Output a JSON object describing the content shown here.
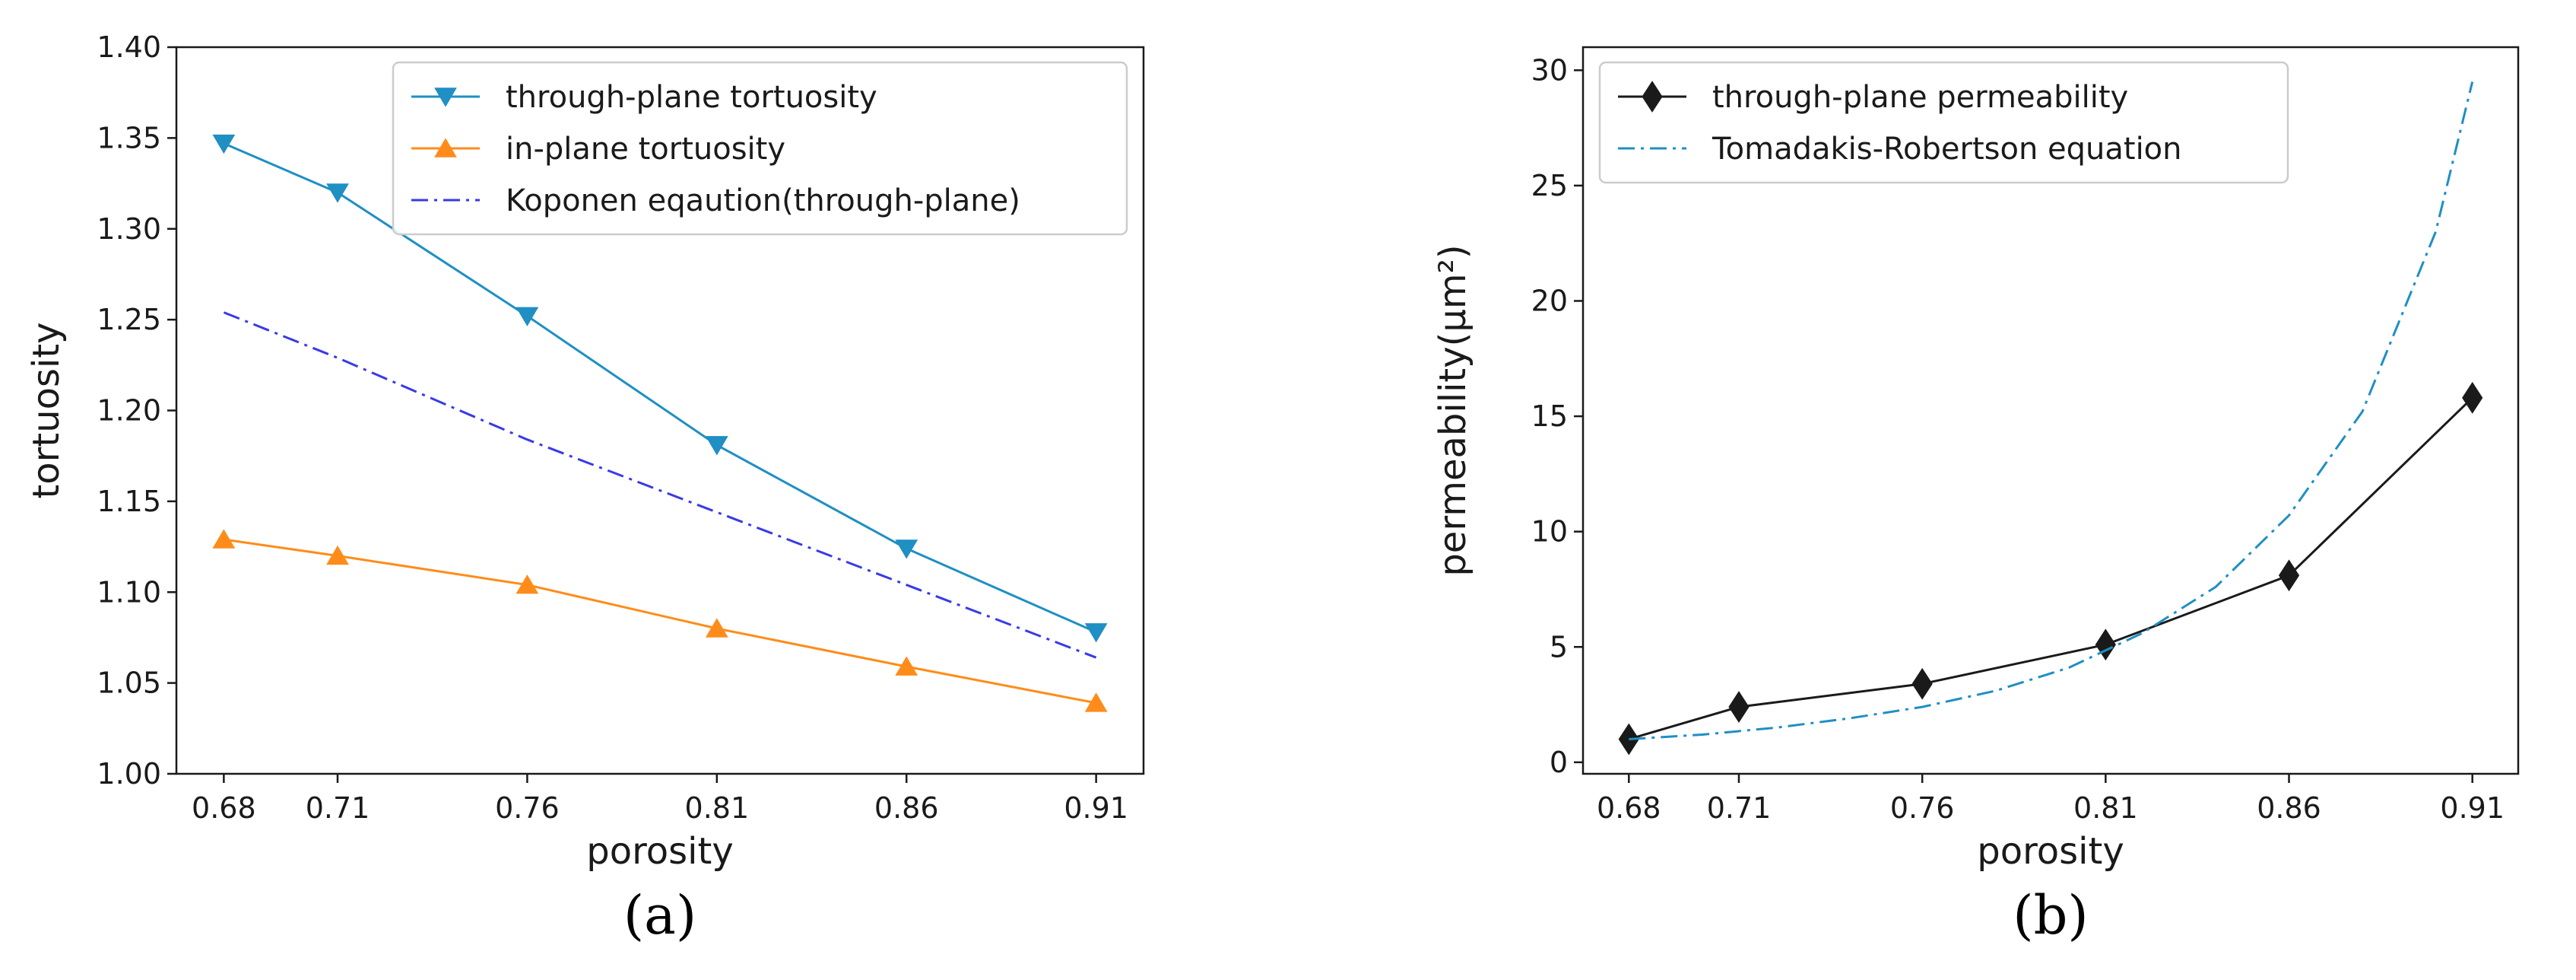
{
  "chart_data": [
    {
      "type": "line",
      "panel_label": "(a)",
      "title": "",
      "xlabel": "porosity",
      "ylabel": "tortuosity",
      "x": [
        0.68,
        0.71,
        0.76,
        0.81,
        0.86,
        0.91
      ],
      "x_tick_labels": [
        "0.68",
        "0.71",
        "0.76",
        "0.81",
        "0.86",
        "0.91"
      ],
      "xlim": [
        0.6675,
        0.9225
      ],
      "ylim": [
        1.0,
        1.4
      ],
      "y_ticks": [
        1.0,
        1.05,
        1.1,
        1.15,
        1.2,
        1.25,
        1.3,
        1.35,
        1.4
      ],
      "y_tick_labels": [
        "1.00",
        "1.05",
        "1.10",
        "1.15",
        "1.20",
        "1.25",
        "1.30",
        "1.35",
        "1.40"
      ],
      "legend_position": "top-right",
      "series": [
        {
          "name": "through-plane tortuosity",
          "color": "#1f8fc4",
          "line": "solid",
          "marker": "triangle-down",
          "values": [
            1.347,
            1.32,
            1.252,
            1.181,
            1.124,
            1.078
          ]
        },
        {
          "name": "in-plane tortuosity",
          "color": "#ff8c1a",
          "line": "solid",
          "marker": "triangle-up",
          "values": [
            1.129,
            1.12,
            1.104,
            1.08,
            1.059,
            1.039
          ]
        },
        {
          "name": "Koponen eqaution(through-plane)",
          "color": "#3a3ae6",
          "line": "dashdot",
          "marker": "none",
          "values": [
            1.254,
            1.229,
            1.184,
            1.144,
            1.104,
            1.064
          ]
        }
      ]
    },
    {
      "type": "line",
      "panel_label": "(b)",
      "title": "",
      "xlabel": "porosity",
      "ylabel": "permeability(μm²)",
      "x": [
        0.68,
        0.71,
        0.76,
        0.81,
        0.86,
        0.91
      ],
      "x_tick_labels": [
        "0.68",
        "0.71",
        "0.76",
        "0.81",
        "0.86",
        "0.91"
      ],
      "xlim": [
        0.6675,
        0.9225
      ],
      "ylim": [
        -0.5,
        31
      ],
      "y_ticks": [
        0,
        5,
        10,
        15,
        20,
        25,
        30
      ],
      "y_tick_labels": [
        "0",
        "5",
        "10",
        "15",
        "20",
        "25",
        "30"
      ],
      "legend_position": "top-left",
      "series": [
        {
          "name": "through-plane permeability",
          "color": "#1a1a1a",
          "line": "solid",
          "marker": "diamond",
          "values": [
            1.0,
            2.4,
            3.4,
            5.1,
            8.1,
            15.8
          ]
        },
        {
          "name": "Tomadakis-Robertson equation",
          "color": "#1f8fc4",
          "line": "dashdot",
          "marker": "none",
          "x": [
            0.68,
            0.7,
            0.72,
            0.74,
            0.76,
            0.78,
            0.8,
            0.82,
            0.84,
            0.86,
            0.88,
            0.9,
            0.91
          ],
          "values": [
            1.0,
            1.2,
            1.5,
            1.9,
            2.4,
            3.1,
            4.1,
            5.6,
            7.6,
            10.7,
            15.2,
            23.0,
            29.5
          ]
        }
      ]
    }
  ]
}
